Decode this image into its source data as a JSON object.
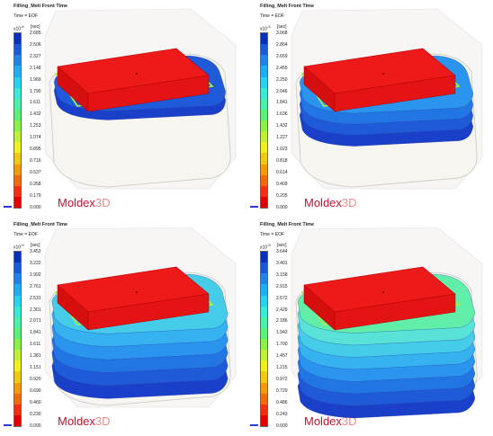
{
  "panels": [
    {
      "title": "Filling_Melt Front Time",
      "subtitle": "Time = EOF",
      "exponent": "x10",
      "power": "-5",
      "unit": "[sec]",
      "ticks": [
        "2.685",
        "2.506",
        "2.327",
        "2.148",
        "1.969",
        "1.790",
        "1.611",
        "1.432",
        "1.253",
        "1.074",
        "0.895",
        "0.716",
        "0.537",
        "0.358",
        "0.179",
        "0.000"
      ],
      "brand": {
        "a": "Moldex",
        "b": "3D"
      },
      "fill_fraction": 0.18
    },
    {
      "title": "Filling_Melt Front Time",
      "subtitle": "Time = EOF",
      "exponent": "x10",
      "power": "-5",
      "unit": "[sec]",
      "ticks": [
        "3.068",
        "2.864",
        "2.659",
        "2.455",
        "2.250",
        "2.046",
        "1.841",
        "1.636",
        "1.432",
        "1.227",
        "1.023",
        "0.818",
        "0.614",
        "0.409",
        "0.205",
        "0.000"
      ],
      "brand": {
        "a": "Moldex",
        "b": "3D"
      },
      "fill_fraction": 0.45
    },
    {
      "title": "Filling_Melt Front Time",
      "subtitle": "Time = EOF",
      "exponent": "x10",
      "power": "-5",
      "unit": "[sec]",
      "ticks": [
        "3.452",
        "3.222",
        "2.992",
        "2.761",
        "2.531",
        "2.301",
        "2.071",
        "1.841",
        "1.611",
        "1.381",
        "1.151",
        "0.920",
        "0.690",
        "0.460",
        "0.230",
        "0.000"
      ],
      "brand": {
        "a": "Moldex",
        "b": "3D"
      },
      "fill_fraction": 0.8
    },
    {
      "title": "Filling_Melt Front Time",
      "subtitle": "Time = EOF",
      "exponent": "x10",
      "power": "-5",
      "unit": "[sec]",
      "ticks": [
        "3.644",
        "3.401",
        "3.158",
        "2.915",
        "2.672",
        "2.429",
        "2.186",
        "1.943",
        "1.700",
        "1.457",
        "1.215",
        "0.972",
        "0.729",
        "0.486",
        "0.243",
        "0.000"
      ],
      "brand": {
        "a": "Moldex",
        "b": "3D"
      },
      "fill_fraction": 1.0
    }
  ],
  "legend_colors": [
    "#0a2fb8",
    "#1a5ad6",
    "#1f84e6",
    "#20aef0",
    "#2bd0ee",
    "#3ee8d6",
    "#4cf0a8",
    "#5cf07a",
    "#8cf04a",
    "#c0f03a",
    "#f0f020",
    "#f0c818",
    "#f09a10",
    "#f06a10",
    "#f03010",
    "#e00000"
  ]
}
